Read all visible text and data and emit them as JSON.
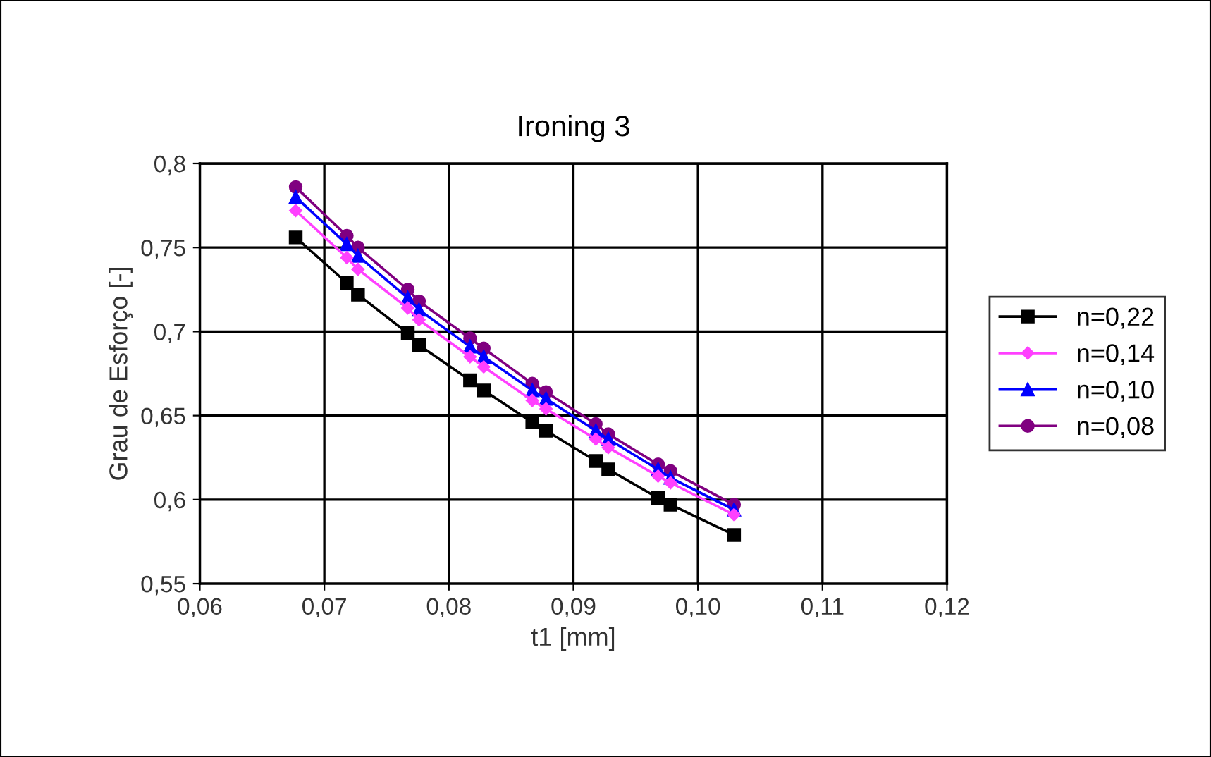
{
  "chart_data": {
    "type": "line",
    "title": "Ironing 3",
    "xlabel": "t1 [mm]",
    "ylabel": "Grau de Esforço [-]",
    "x": [
      0.0677,
      0.0718,
      0.0727,
      0.0767,
      0.0776,
      0.0817,
      0.0828,
      0.0867,
      0.0878,
      0.0918,
      0.0928,
      0.0968,
      0.0978,
      0.1029
    ],
    "series": [
      {
        "name": "n=0,22",
        "color": "#000000",
        "marker": "square",
        "values": [
          0.756,
          0.729,
          0.722,
          0.699,
          0.692,
          0.671,
          0.665,
          0.646,
          0.641,
          0.623,
          0.618,
          0.601,
          0.597,
          0.579
        ]
      },
      {
        "name": "n=0,14",
        "color": "#ff40ff",
        "marker": "diamond",
        "values": [
          0.772,
          0.744,
          0.737,
          0.714,
          0.707,
          0.685,
          0.679,
          0.659,
          0.654,
          0.636,
          0.631,
          0.614,
          0.61,
          0.591
        ]
      },
      {
        "name": "n=0,10",
        "color": "#0000ff",
        "marker": "triangle",
        "values": [
          0.78,
          0.752,
          0.745,
          0.72,
          0.713,
          0.691,
          0.685,
          0.665,
          0.66,
          0.641,
          0.636,
          0.618,
          0.613,
          0.594
        ]
      },
      {
        "name": "n=0,08",
        "color": "#800080",
        "marker": "circle",
        "values": [
          0.786,
          0.757,
          0.75,
          0.725,
          0.718,
          0.696,
          0.69,
          0.669,
          0.664,
          0.645,
          0.639,
          0.621,
          0.617,
          0.597
        ]
      }
    ],
    "xlim": [
      0.06,
      0.12
    ],
    "xticks": [
      {
        "value": 0.06,
        "label": "0,06"
      },
      {
        "value": 0.07,
        "label": "0,07"
      },
      {
        "value": 0.08,
        "label": "0,08"
      },
      {
        "value": 0.09,
        "label": "0,09"
      },
      {
        "value": 0.1,
        "label": "0,10"
      },
      {
        "value": 0.11,
        "label": "0,11"
      },
      {
        "value": 0.12,
        "label": "0,12"
      }
    ],
    "ylim": [
      0.55,
      0.8
    ],
    "yticks": [
      {
        "value": 0.55,
        "label": "0,55"
      },
      {
        "value": 0.6,
        "label": "0,6"
      },
      {
        "value": 0.65,
        "label": "0,65"
      },
      {
        "value": 0.7,
        "label": "0,7"
      },
      {
        "value": 0.75,
        "label": "0,75"
      },
      {
        "value": 0.8,
        "label": "0,8"
      }
    ],
    "grid": true,
    "legend": "right",
    "line_style": "solid"
  }
}
